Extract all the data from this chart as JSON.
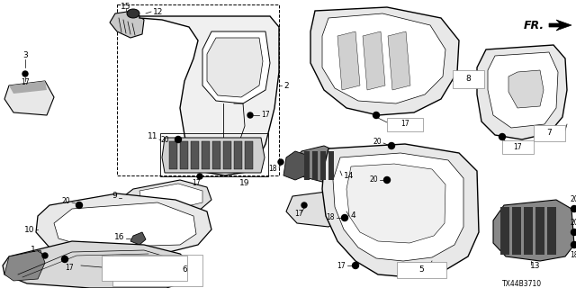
{
  "diagram_code": "TX44B3710",
  "fr_label": "FR.",
  "bg": "#ffffff",
  "lc": "#000000",
  "fs_num": 6.5,
  "fs_small": 5.5,
  "figsize": [
    6.4,
    3.2
  ],
  "dpi": 100
}
